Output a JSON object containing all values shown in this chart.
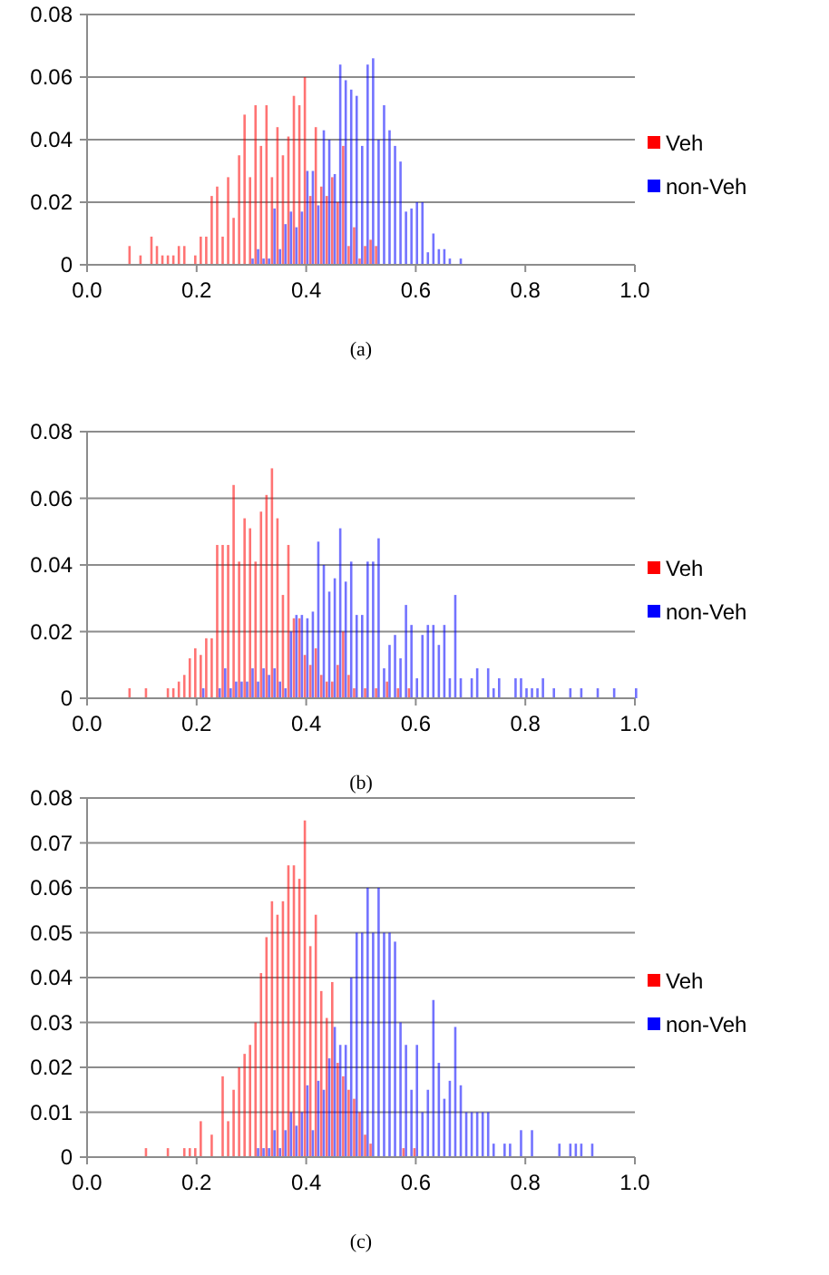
{
  "chart_data": [
    {
      "type": "bar",
      "annotations": [
        "(a)"
      ],
      "xlim": [
        0,
        1
      ],
      "xticks": [
        {
          "value": 0,
          "label": "0.0"
        },
        {
          "value": 0.2,
          "label": "0.2"
        },
        {
          "value": 0.4,
          "label": "0.4"
        },
        {
          "value": 0.6,
          "label": "0.6"
        },
        {
          "value": 0.8,
          "label": "0.8"
        },
        {
          "value": 1,
          "label": "1.0"
        }
      ],
      "ylim": [
        0,
        0.08
      ],
      "yticks": [
        0,
        0.02,
        0.04,
        0.06,
        0.08
      ],
      "grid": "y",
      "legend": "right",
      "series": [
        {
          "name": "Veh",
          "color": "#ff0000",
          "x": [
            0.08,
            0.1,
            0.12,
            0.13,
            0.14,
            0.15,
            0.16,
            0.17,
            0.18,
            0.2,
            0.21,
            0.22,
            0.23,
            0.24,
            0.25,
            0.26,
            0.27,
            0.28,
            0.29,
            0.3,
            0.31,
            0.32,
            0.33,
            0.34,
            0.35,
            0.36,
            0.37,
            0.38,
            0.39,
            0.4,
            0.41,
            0.42,
            0.43,
            0.44,
            0.45,
            0.46,
            0.47,
            0.48,
            0.49,
            0.5,
            0.51,
            0.52,
            0.53
          ],
          "values": [
            0.006,
            0.003,
            0.009,
            0.006,
            0.003,
            0.003,
            0.003,
            0.006,
            0.006,
            0.003,
            0.009,
            0.009,
            0.022,
            0.025,
            0.009,
            0.028,
            0.015,
            0.035,
            0.048,
            0.028,
            0.051,
            0.038,
            0.051,
            0.028,
            0.044,
            0.035,
            0.041,
            0.054,
            0.051,
            0.06,
            0.022,
            0.044,
            0.025,
            0.022,
            0.028,
            0.02,
            0.038,
            0.006,
            0.012,
            0.002,
            0.006,
            0.008,
            0.006
          ]
        },
        {
          "name": "non-Veh",
          "color": "#0000ff",
          "x": [
            0.3,
            0.31,
            0.32,
            0.33,
            0.34,
            0.35,
            0.36,
            0.37,
            0.38,
            0.39,
            0.4,
            0.41,
            0.42,
            0.43,
            0.44,
            0.45,
            0.46,
            0.47,
            0.48,
            0.49,
            0.5,
            0.51,
            0.52,
            0.53,
            0.54,
            0.55,
            0.56,
            0.57,
            0.58,
            0.59,
            0.6,
            0.61,
            0.62,
            0.63,
            0.64,
            0.65,
            0.66,
            0.68
          ],
          "values": [
            0.002,
            0.005,
            0.002,
            0.002,
            0.018,
            0.005,
            0.013,
            0.017,
            0.012,
            0.017,
            0.03,
            0.03,
            0.019,
            0.043,
            0.04,
            0.029,
            0.064,
            0.059,
            0.056,
            0.054,
            0.038,
            0.064,
            0.066,
            0.04,
            0.051,
            0.043,
            0.038,
            0.033,
            0.017,
            0.018,
            0.02,
            0.02,
            0.004,
            0.01,
            0.005,
            0.005,
            0.002,
            0.002
          ]
        }
      ]
    },
    {
      "type": "bar",
      "annotations": [
        "(b)"
      ],
      "xlim": [
        0,
        1
      ],
      "xticks": [
        {
          "value": 0,
          "label": "0.0"
        },
        {
          "value": 0.2,
          "label": "0.2"
        },
        {
          "value": 0.4,
          "label": "0.4"
        },
        {
          "value": 0.6,
          "label": "0.6"
        },
        {
          "value": 0.8,
          "label": "0.8"
        },
        {
          "value": 1,
          "label": "1.0"
        }
      ],
      "ylim": [
        0,
        0.08
      ],
      "yticks": [
        0,
        0.02,
        0.04,
        0.06,
        0.08
      ],
      "grid": "y",
      "legend": "right",
      "series": [
        {
          "name": "Veh",
          "color": "#ff0000",
          "x": [
            0.08,
            0.11,
            0.15,
            0.16,
            0.17,
            0.18,
            0.19,
            0.2,
            0.21,
            0.22,
            0.23,
            0.24,
            0.25,
            0.26,
            0.27,
            0.28,
            0.29,
            0.3,
            0.31,
            0.32,
            0.33,
            0.34,
            0.35,
            0.36,
            0.37,
            0.38,
            0.39,
            0.4,
            0.41,
            0.42,
            0.43,
            0.44,
            0.45,
            0.46,
            0.47,
            0.48,
            0.49,
            0.51,
            0.53,
            0.55,
            0.57,
            0.59
          ],
          "values": [
            0.003,
            0.003,
            0.003,
            0.003,
            0.005,
            0.007,
            0.012,
            0.015,
            0.013,
            0.018,
            0.018,
            0.046,
            0.046,
            0.046,
            0.064,
            0.041,
            0.054,
            0.051,
            0.041,
            0.056,
            0.061,
            0.069,
            0.054,
            0.031,
            0.046,
            0.024,
            0.024,
            0.013,
            0.01,
            0.015,
            0.007,
            0.005,
            0.005,
            0.01,
            0.02,
            0.007,
            0.003,
            0.003,
            0.003,
            0.005,
            0.003,
            0.003
          ]
        },
        {
          "name": "non-Veh",
          "color": "#0000ff",
          "x": [
            0.21,
            0.24,
            0.25,
            0.26,
            0.27,
            0.28,
            0.29,
            0.3,
            0.31,
            0.32,
            0.33,
            0.34,
            0.35,
            0.36,
            0.37,
            0.38,
            0.39,
            0.4,
            0.41,
            0.42,
            0.43,
            0.44,
            0.45,
            0.46,
            0.47,
            0.48,
            0.49,
            0.5,
            0.51,
            0.52,
            0.53,
            0.54,
            0.55,
            0.56,
            0.57,
            0.58,
            0.59,
            0.6,
            0.61,
            0.62,
            0.63,
            0.64,
            0.65,
            0.66,
            0.67,
            0.68,
            0.7,
            0.71,
            0.73,
            0.74,
            0.75,
            0.78,
            0.79,
            0.8,
            0.81,
            0.82,
            0.83,
            0.85,
            0.88,
            0.9,
            0.93,
            0.96,
            1.0
          ],
          "values": [
            0.003,
            0.003,
            0.009,
            0.003,
            0.005,
            0.005,
            0.005,
            0.009,
            0.005,
            0.009,
            0.007,
            0.009,
            0.005,
            0.003,
            0.02,
            0.025,
            0.025,
            0.024,
            0.026,
            0.047,
            0.04,
            0.032,
            0.036,
            0.051,
            0.035,
            0.041,
            0.025,
            0.025,
            0.041,
            0.041,
            0.048,
            0.009,
            0.016,
            0.019,
            0.012,
            0.028,
            0.022,
            0.006,
            0.019,
            0.022,
            0.022,
            0.016,
            0.022,
            0.006,
            0.031,
            0.006,
            0.006,
            0.009,
            0.009,
            0.003,
            0.006,
            0.006,
            0.006,
            0.003,
            0.003,
            0.003,
            0.006,
            0.003,
            0.003,
            0.003,
            0.003,
            0.003,
            0.003
          ]
        }
      ]
    },
    {
      "type": "bar",
      "annotations": [
        "(c)"
      ],
      "xlim": [
        0,
        1
      ],
      "xticks": [
        {
          "value": 0,
          "label": "0.0"
        },
        {
          "value": 0.2,
          "label": "0.2"
        },
        {
          "value": 0.4,
          "label": "0.4"
        },
        {
          "value": 0.6,
          "label": "0.6"
        },
        {
          "value": 0.8,
          "label": "0.8"
        },
        {
          "value": 1,
          "label": "1.0"
        }
      ],
      "ylim": [
        0,
        0.08
      ],
      "yticks": [
        0,
        0.01,
        0.02,
        0.03,
        0.04,
        0.05,
        0.06,
        0.07,
        0.08
      ],
      "grid": "y",
      "legend": "right",
      "series": [
        {
          "name": "Veh",
          "color": "#ff0000",
          "x": [
            0.11,
            0.15,
            0.18,
            0.19,
            0.2,
            0.21,
            0.23,
            0.25,
            0.26,
            0.27,
            0.28,
            0.29,
            0.3,
            0.31,
            0.32,
            0.33,
            0.34,
            0.35,
            0.36,
            0.37,
            0.38,
            0.39,
            0.4,
            0.41,
            0.42,
            0.43,
            0.44,
            0.45,
            0.46,
            0.47,
            0.48,
            0.49,
            0.5,
            0.51,
            0.52,
            0.58,
            0.6
          ],
          "values": [
            0.002,
            0.002,
            0.002,
            0.002,
            0.002,
            0.008,
            0.005,
            0.018,
            0.008,
            0.015,
            0.02,
            0.023,
            0.025,
            0.03,
            0.041,
            0.049,
            0.057,
            0.054,
            0.057,
            0.065,
            0.065,
            0.062,
            0.075,
            0.047,
            0.054,
            0.037,
            0.031,
            0.039,
            0.021,
            0.018,
            0.015,
            0.013,
            0.01,
            0.005,
            0.003,
            0.002,
            0.002
          ]
        },
        {
          "name": "non-Veh",
          "color": "#0000ff",
          "x": [
            0.31,
            0.32,
            0.33,
            0.34,
            0.35,
            0.36,
            0.37,
            0.38,
            0.39,
            0.4,
            0.41,
            0.42,
            0.43,
            0.44,
            0.45,
            0.46,
            0.47,
            0.48,
            0.49,
            0.5,
            0.51,
            0.52,
            0.53,
            0.54,
            0.55,
            0.56,
            0.57,
            0.58,
            0.59,
            0.6,
            0.61,
            0.62,
            0.63,
            0.64,
            0.65,
            0.66,
            0.67,
            0.68,
            0.69,
            0.7,
            0.71,
            0.72,
            0.73,
            0.74,
            0.76,
            0.77,
            0.79,
            0.81,
            0.86,
            0.88,
            0.89,
            0.9,
            0.92
          ],
          "values": [
            0.002,
            0.002,
            0.002,
            0.006,
            0.002,
            0.006,
            0.01,
            0.007,
            0.01,
            0.016,
            0.006,
            0.017,
            0.015,
            0.022,
            0.029,
            0.025,
            0.025,
            0.04,
            0.05,
            0.05,
            0.06,
            0.05,
            0.06,
            0.05,
            0.05,
            0.048,
            0.03,
            0.025,
            0.015,
            0.025,
            0.01,
            0.015,
            0.035,
            0.021,
            0.013,
            0.017,
            0.029,
            0.016,
            0.01,
            0.01,
            0.01,
            0.01,
            0.01,
            0.003,
            0.003,
            0.003,
            0.006,
            0.006,
            0.003,
            0.003,
            0.003,
            0.003,
            0.003
          ]
        }
      ]
    }
  ]
}
